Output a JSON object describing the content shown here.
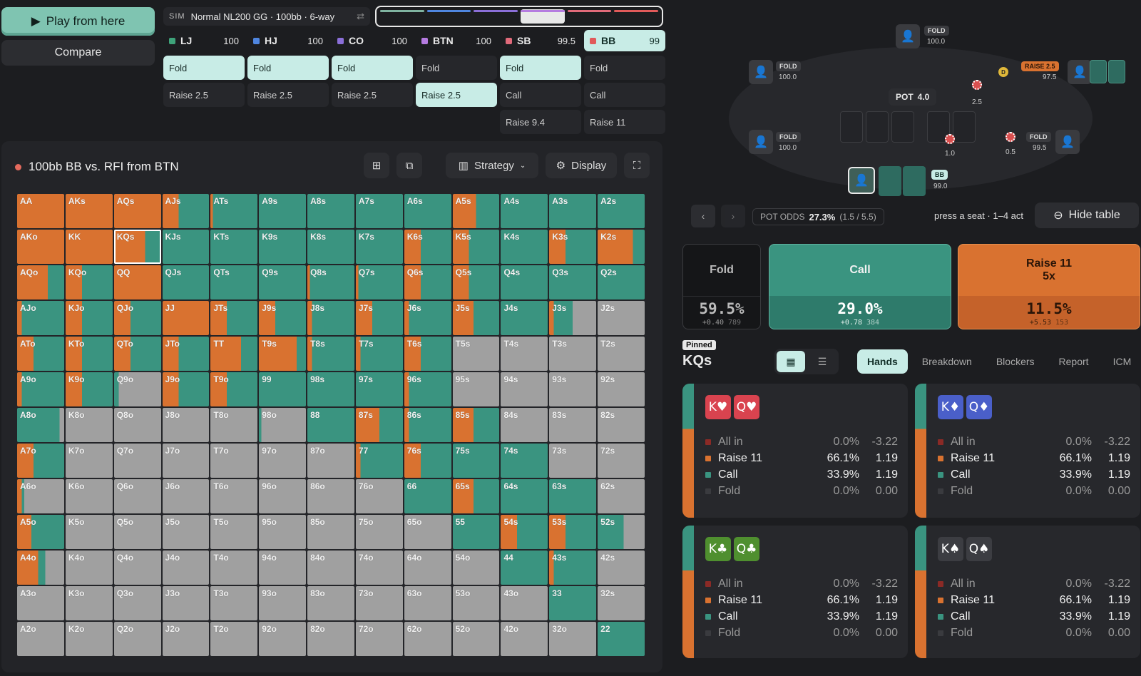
{
  "colors": {
    "raise": "#d97230",
    "call": "#3a9480",
    "fold": "#a0a0a0",
    "allin": "#8b2a26",
    "teal_light": "#c8ece6"
  },
  "buttons": {
    "play": "Play from here",
    "compare": "Compare"
  },
  "sim": {
    "tag": "SIM",
    "label": "Normal NL200 GG · 100bb · 6-way",
    "swap": "⇄"
  },
  "segments": [
    "#7fb3a0",
    "#4f86e0",
    "#8b6fd8",
    "#b57be0",
    "#e16a7a",
    "#e15a5a"
  ],
  "players": [
    {
      "name": "LJ",
      "stack": "100",
      "color": "#3ea37a",
      "actions": [
        "Fold",
        "Raise 2.5"
      ],
      "sel": 0
    },
    {
      "name": "HJ",
      "stack": "100",
      "color": "#4f86e0",
      "actions": [
        "Fold",
        "Raise 2.5"
      ],
      "sel": 0
    },
    {
      "name": "CO",
      "stack": "100",
      "color": "#8b6fd8",
      "actions": [
        "Fold",
        "Raise 2.5"
      ],
      "sel": 0
    },
    {
      "name": "BTN",
      "stack": "100",
      "color": "#b57be0",
      "actions": [
        "Fold",
        "Raise 2.5"
      ],
      "sel": 1
    },
    {
      "name": "SB",
      "stack": "99.5",
      "color": "#e16a7a",
      "actions": [
        "Fold",
        "Call",
        "Raise 9.4"
      ],
      "sel": 0
    },
    {
      "name": "BB",
      "stack": "99",
      "color": "#e15a5a",
      "actions": [
        "Fold",
        "Call",
        "Raise 11"
      ],
      "sel": -1
    }
  ],
  "panel": {
    "title": "100bb BB vs. RFI from BTN",
    "strategy": "Strategy",
    "display": "Display"
  },
  "grid": {
    "labels": [
      [
        "AA",
        "AKs",
        "AQs",
        "AJs",
        "ATs",
        "A9s",
        "A8s",
        "A7s",
        "A6s",
        "A5s",
        "A4s",
        "A3s",
        "A2s"
      ],
      [
        "AKo",
        "KK",
        "KQs",
        "KJs",
        "KTs",
        "K9s",
        "K8s",
        "K7s",
        "K6s",
        "K5s",
        "K4s",
        "K3s",
        "K2s"
      ],
      [
        "AQo",
        "KQo",
        "QQ",
        "QJs",
        "QTs",
        "Q9s",
        "Q8s",
        "Q7s",
        "Q6s",
        "Q5s",
        "Q4s",
        "Q3s",
        "Q2s"
      ],
      [
        "AJo",
        "KJo",
        "QJo",
        "JJ",
        "JTs",
        "J9s",
        "J8s",
        "J7s",
        "J6s",
        "J5s",
        "J4s",
        "J3s",
        "J2s"
      ],
      [
        "ATo",
        "KTo",
        "QTo",
        "JTo",
        "TT",
        "T9s",
        "T8s",
        "T7s",
        "T6s",
        "T5s",
        "T4s",
        "T3s",
        "T2s"
      ],
      [
        "A9o",
        "K9o",
        "Q9o",
        "J9o",
        "T9o",
        "99",
        "98s",
        "97s",
        "96s",
        "95s",
        "94s",
        "93s",
        "92s"
      ],
      [
        "A8o",
        "K8o",
        "Q8o",
        "J8o",
        "T8o",
        "98o",
        "88",
        "87s",
        "86s",
        "85s",
        "84s",
        "83s",
        "82s"
      ],
      [
        "A7o",
        "K7o",
        "Q7o",
        "J7o",
        "T7o",
        "97o",
        "87o",
        "77",
        "76s",
        "75s",
        "74s",
        "73s",
        "72s"
      ],
      [
        "A6o",
        "K6o",
        "Q6o",
        "J6o",
        "T6o",
        "96o",
        "86o",
        "76o",
        "66",
        "65s",
        "64s",
        "63s",
        "62s"
      ],
      [
        "A5o",
        "K5o",
        "Q5o",
        "J5o",
        "T5o",
        "95o",
        "85o",
        "75o",
        "65o",
        "55",
        "54s",
        "53s",
        "52s"
      ],
      [
        "A4o",
        "K4o",
        "Q4o",
        "J4o",
        "T4o",
        "94o",
        "84o",
        "74o",
        "64o",
        "54o",
        "44",
        "43s",
        "42s"
      ],
      [
        "A3o",
        "K3o",
        "Q3o",
        "J3o",
        "T3o",
        "93o",
        "83o",
        "73o",
        "63o",
        "53o",
        "43o",
        "33",
        "32s"
      ],
      [
        "A2o",
        "K2o",
        "Q2o",
        "J2o",
        "T2o",
        "92o",
        "82o",
        "72o",
        "62o",
        "52o",
        "42o",
        "32o",
        "22"
      ]
    ],
    "raise": [
      [
        1,
        1,
        1,
        0.35,
        0.05,
        0,
        0,
        0,
        0,
        0.5,
        0,
        0,
        0
      ],
      [
        1,
        1,
        0.66,
        0,
        0,
        0,
        0,
        0,
        0.35,
        0.35,
        0,
        0.35,
        0.75
      ],
      [
        0.65,
        0.35,
        1,
        0,
        0,
        0,
        0.05,
        0.05,
        0.35,
        0.35,
        0,
        0,
        0
      ],
      [
        0.1,
        0.35,
        0.35,
        1,
        0.35,
        0.35,
        0.1,
        0.35,
        0.1,
        0.45,
        0,
        0.1,
        0
      ],
      [
        0.35,
        0.35,
        0.35,
        0.35,
        0.65,
        0.8,
        0.1,
        0.1,
        0.35,
        0,
        0,
        0,
        0
      ],
      [
        0.1,
        0.35,
        0,
        0.35,
        0.35,
        0,
        0,
        0,
        0.1,
        0,
        0,
        0,
        0
      ],
      [
        0,
        0,
        0,
        0,
        0,
        0,
        0,
        0.5,
        0.1,
        0.45,
        0,
        0,
        0
      ],
      [
        0.35,
        0,
        0,
        0,
        0,
        0,
        0,
        0.1,
        0.35,
        0,
        0,
        0,
        0
      ],
      [
        0.1,
        0,
        0,
        0,
        0,
        0,
        0,
        0,
        0,
        0.45,
        0,
        0,
        0
      ],
      [
        0.3,
        0,
        0,
        0,
        0,
        0,
        0,
        0,
        0,
        0,
        0.35,
        0.35,
        0
      ],
      [
        0.45,
        0,
        0,
        0,
        0,
        0,
        0,
        0,
        0,
        0,
        0,
        0.1,
        0
      ],
      [
        0,
        0,
        0,
        0,
        0,
        0,
        0,
        0,
        0,
        0,
        0,
        0,
        0
      ],
      [
        0,
        0,
        0,
        0,
        0,
        0,
        0,
        0,
        0,
        0,
        0,
        0,
        0
      ]
    ],
    "call": [
      [
        0,
        0,
        0,
        0.65,
        0.95,
        1,
        1,
        1,
        1,
        0.5,
        1,
        1,
        1
      ],
      [
        0,
        0,
        0.34,
        1,
        1,
        1,
        1,
        1,
        0.65,
        0.65,
        1,
        0.65,
        0.25
      ],
      [
        0.35,
        0.65,
        0,
        1,
        1,
        1,
        0.95,
        0.95,
        0.65,
        0.65,
        1,
        1,
        1
      ],
      [
        0.9,
        0.65,
        0.65,
        0,
        0.65,
        0.65,
        0.9,
        0.65,
        0.9,
        0.55,
        1,
        0.4,
        0
      ],
      [
        0.65,
        0.65,
        0.65,
        0.65,
        0.35,
        0.2,
        0.9,
        0.9,
        0.65,
        0,
        0,
        0,
        0
      ],
      [
        0.9,
        0.65,
        0.1,
        0.65,
        0.65,
        1,
        1,
        1,
        0.9,
        0,
        0,
        0,
        0
      ],
      [
        0.9,
        0,
        0,
        0,
        0,
        0.05,
        1,
        0.5,
        0.9,
        0.55,
        0,
        0,
        0
      ],
      [
        0.65,
        0,
        0,
        0,
        0,
        0,
        0,
        0.9,
        0.65,
        1,
        1,
        0,
        0
      ],
      [
        0.05,
        0,
        0,
        0,
        0,
        0,
        0,
        0,
        1,
        0.55,
        1,
        1,
        0
      ],
      [
        0.7,
        0,
        0,
        0,
        0,
        0,
        0,
        0,
        0,
        1,
        0.65,
        0.65,
        0.55
      ],
      [
        0.15,
        0,
        0,
        0,
        0,
        0,
        0,
        0,
        0,
        0,
        1,
        0.9,
        0
      ],
      [
        0,
        0,
        0,
        0,
        0,
        0,
        0,
        0,
        0,
        0,
        0,
        1,
        0
      ],
      [
        0,
        0,
        0,
        0,
        0,
        0,
        0,
        0,
        0,
        0,
        0,
        0,
        1
      ]
    ],
    "selected": "KQs"
  },
  "table": {
    "pot_label": "POT",
    "pot_value": "4.0",
    "seats": [
      {
        "tag": "FOLD",
        "stack": "100.0"
      },
      {
        "tag": "FOLD",
        "stack": "100.0"
      },
      {
        "tag": "FOLD",
        "stack": "100.0"
      },
      {
        "tag": "RAISE 2.5",
        "stack": "97.5"
      },
      {
        "tag": "FOLD",
        "stack": "99.5"
      },
      {
        "tag": "BB",
        "stack": "99.0"
      }
    ],
    "bets": [
      "2.5",
      "1.0",
      "0.5"
    ],
    "dealer": "D"
  },
  "nav": {
    "prev": "‹",
    "next": "›",
    "potodds_label": "POT ODDS",
    "potodds_value": "27.3%",
    "potodds_detail": "(1.5 / 5.5)",
    "hint": "press a seat · 1–4 act",
    "hide": "Hide table"
  },
  "actions": [
    {
      "name": "Fold",
      "sub": "",
      "pct": "59.5%",
      "ev": "+0.40",
      "combos": "789"
    },
    {
      "name": "Call",
      "sub": "",
      "pct": "29.0%",
      "ev": "+0.78",
      "combos": "384"
    },
    {
      "name": "Raise 11",
      "sub": "5x",
      "pct": "11.5%",
      "ev": "+5.53",
      "combos": "153"
    }
  ],
  "pinned": {
    "badge": "Pinned",
    "hand": "KQs"
  },
  "tabs": [
    "Hands",
    "Breakdown",
    "Blockers",
    "Report",
    "ICM"
  ],
  "combos": [
    {
      "cards": [
        "K♥",
        "Q♥"
      ],
      "suitcolor": "#d9434f",
      "rows": [
        [
          "All in",
          "0.0%",
          "-3.22"
        ],
        [
          "Raise 11",
          "66.1%",
          "1.19"
        ],
        [
          "Call",
          "33.9%",
          "1.19"
        ],
        [
          "Fold",
          "0.0%",
          "0.00"
        ]
      ]
    },
    {
      "cards": [
        "K♦",
        "Q♦"
      ],
      "suitcolor": "#4a5fc9",
      "rows": [
        [
          "All in",
          "0.0%",
          "-3.22"
        ],
        [
          "Raise 11",
          "66.1%",
          "1.19"
        ],
        [
          "Call",
          "33.9%",
          "1.19"
        ],
        [
          "Fold",
          "0.0%",
          "0.00"
        ]
      ]
    },
    {
      "cards": [
        "K♣",
        "Q♣"
      ],
      "suitcolor": "#4f8f2f",
      "rows": [
        [
          "All in",
          "0.0%",
          "-3.22"
        ],
        [
          "Raise 11",
          "66.1%",
          "1.19"
        ],
        [
          "Call",
          "33.9%",
          "1.19"
        ],
        [
          "Fold",
          "0.0%",
          "0.00"
        ]
      ]
    },
    {
      "cards": [
        "K♠",
        "Q♠"
      ],
      "suitcolor": "#3c3d42",
      "rows": [
        [
          "All in",
          "0.0%",
          "-3.22"
        ],
        [
          "Raise 11",
          "66.1%",
          "1.19"
        ],
        [
          "Call",
          "33.9%",
          "1.19"
        ],
        [
          "Fold",
          "0.0%",
          "0.00"
        ]
      ]
    }
  ]
}
